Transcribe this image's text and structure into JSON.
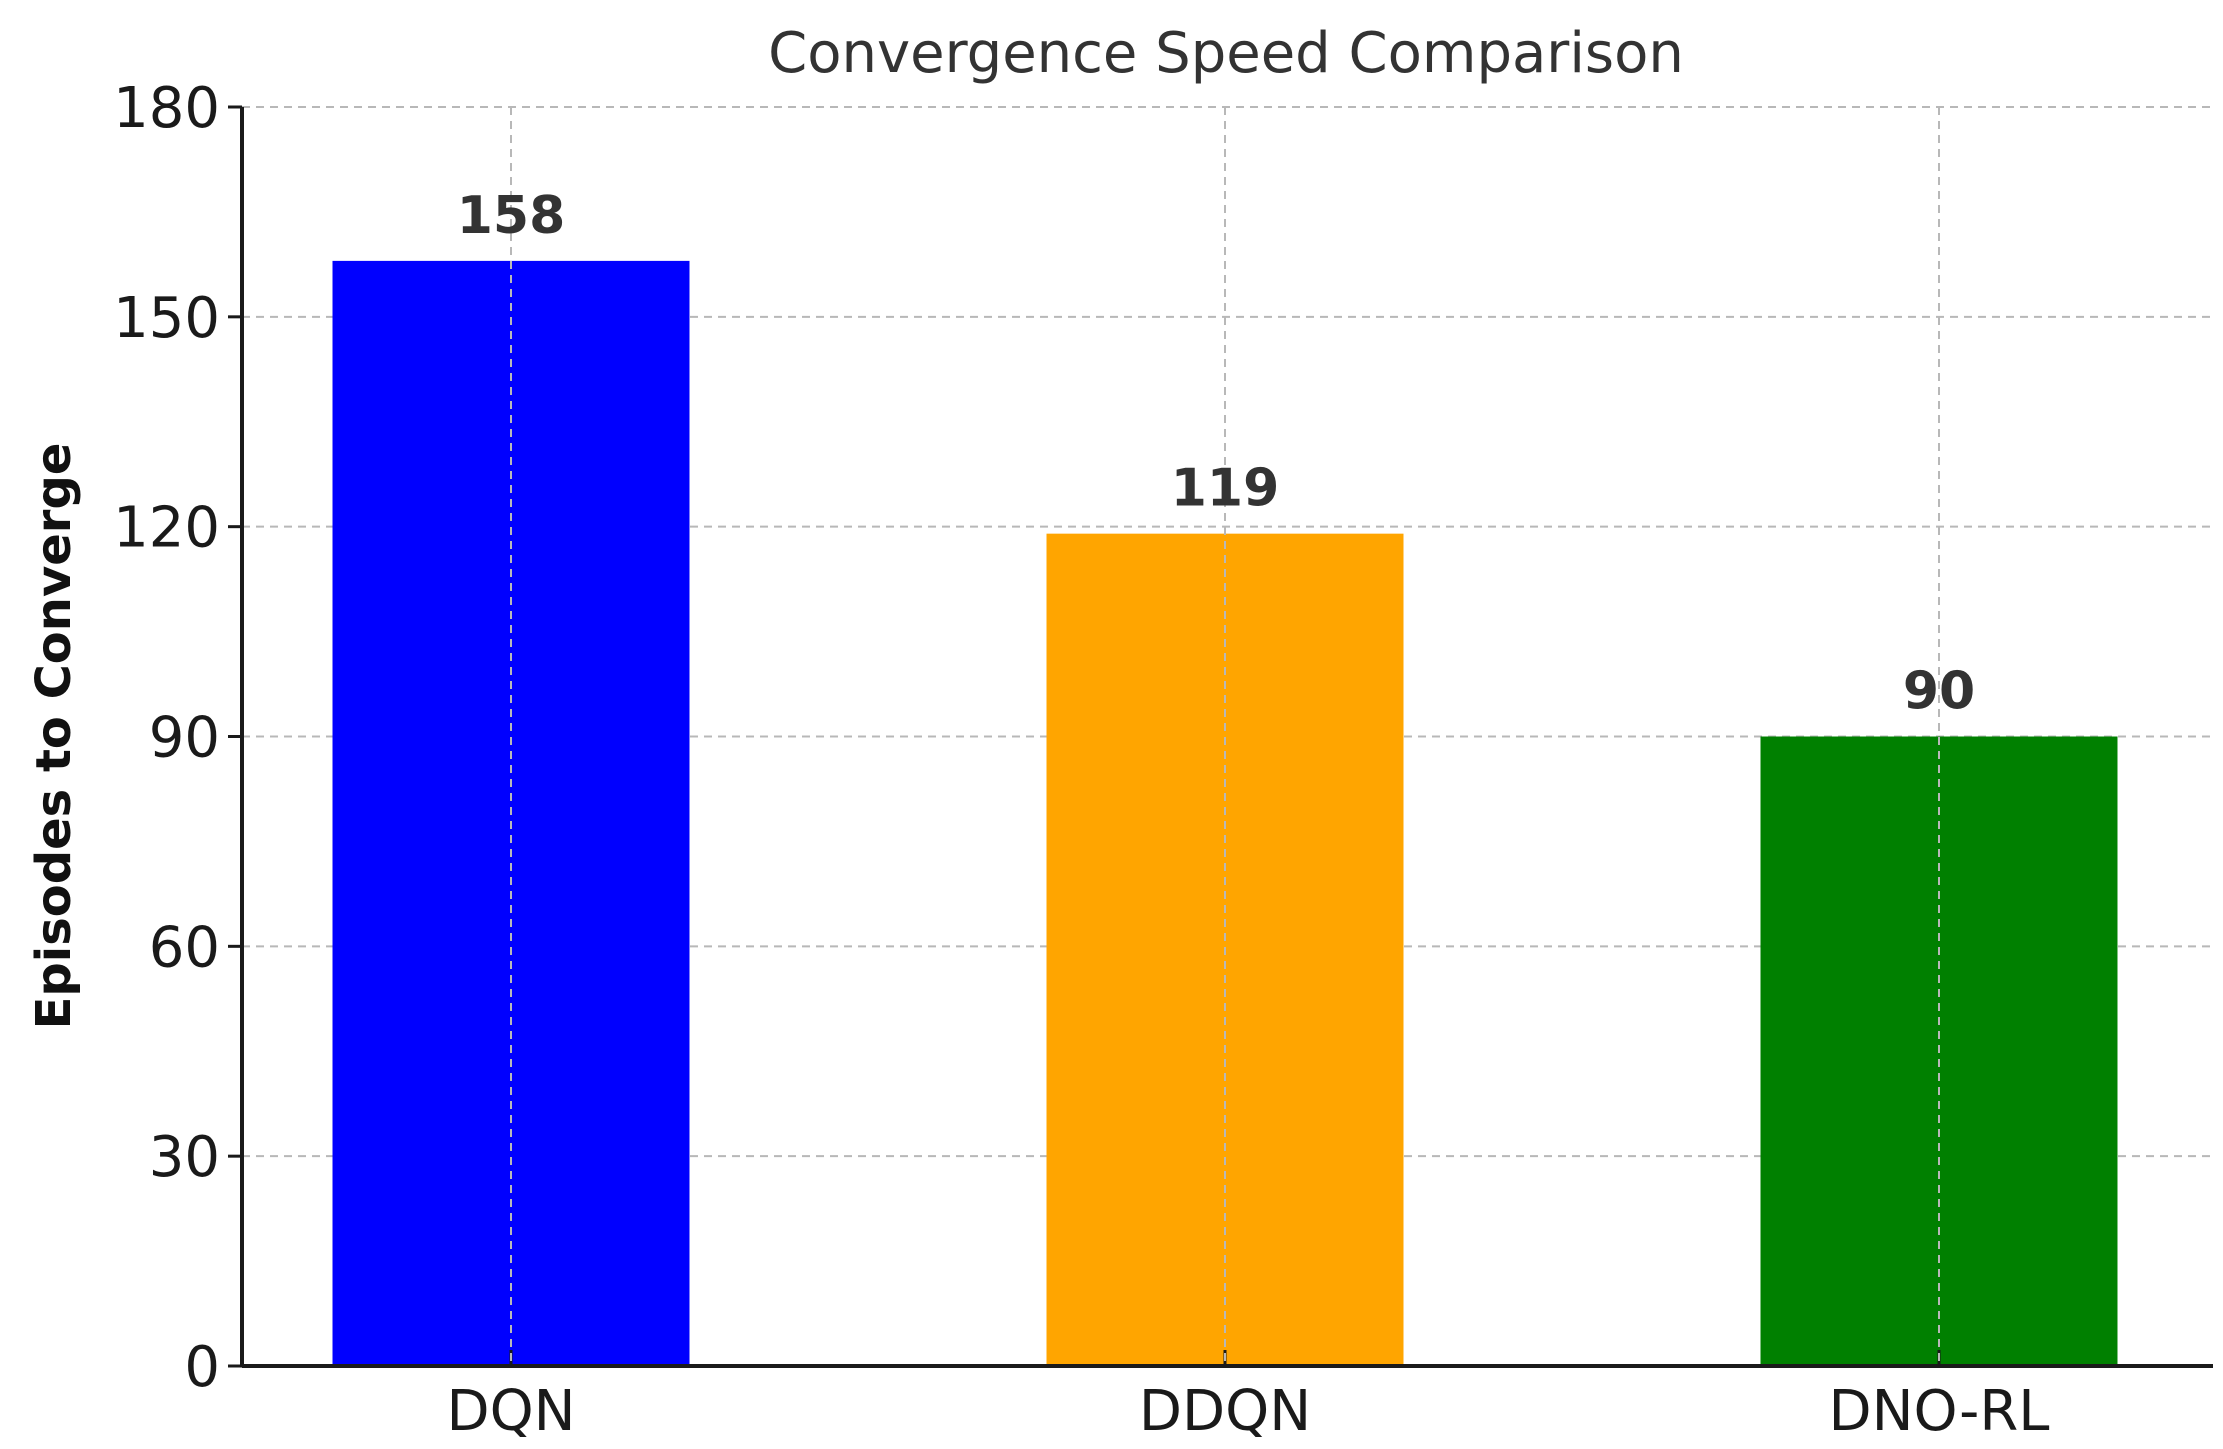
{
  "chart_data": {
    "type": "bar",
    "title": "Convergence Speed Comparison",
    "xlabel": "",
    "ylabel": "Episodes to Converge",
    "categories": [
      "DQN",
      "DDQN",
      "DNO-RL"
    ],
    "values": [
      158,
      119,
      90
    ],
    "value_labels": [
      "158",
      "119",
      "90"
    ],
    "colors": [
      "#0000ff",
      "#ffa500",
      "#008000"
    ],
    "ylim": [
      0,
      180
    ],
    "yticks": [
      0,
      30,
      60,
      90,
      120,
      150,
      180
    ],
    "ytick_labels": [
      "0",
      "30",
      "60",
      "90",
      "120",
      "150",
      "180"
    ],
    "grid": true,
    "legend": "none"
  }
}
